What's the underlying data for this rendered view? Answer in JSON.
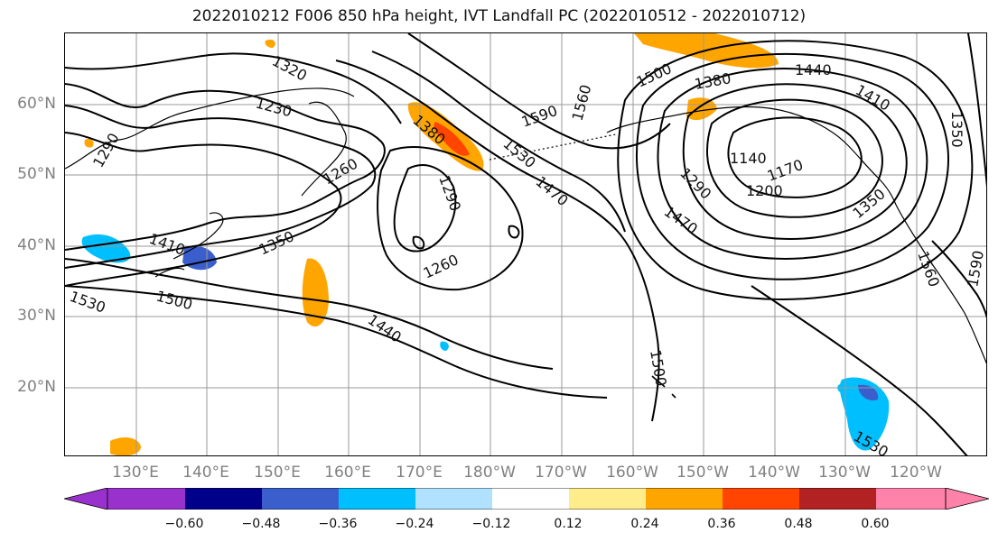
{
  "title": "2022010212 F006 850 hPa height, IVT Landfall PC (2022010512 - 2022010712)",
  "map": {
    "lat_labels": [
      "60°N",
      "50°N",
      "40°N",
      "30°N",
      "20°N"
    ],
    "lon_labels": [
      "130°E",
      "140°E",
      "150°E",
      "160°E",
      "170°E",
      "180°W",
      "170°W",
      "160°W",
      "150°W",
      "140°W",
      "130°W",
      "120°W"
    ],
    "contour_labels": [
      "1320",
      "1230",
      "1290",
      "1260",
      "1410",
      "1350",
      "1530",
      "1500",
      "1440",
      "1380",
      "1290",
      "1260",
      "1530",
      "1470",
      "1590",
      "1560",
      "1500",
      "1380",
      "1440",
      "1410",
      "1140",
      "1170",
      "1200",
      "1290",
      "1470",
      "1350",
      "1350",
      "1560",
      "1590",
      "1500",
      "1530"
    ]
  },
  "colorbar": {
    "tick_labels": [
      "−0.60",
      "−0.48",
      "−0.36",
      "−0.24",
      "−0.12",
      "0.12",
      "0.24",
      "0.36",
      "0.48",
      "0.60"
    ],
    "colors": [
      "#9932cc",
      "#00008b",
      "#3a5fcd",
      "#00bfff",
      "#b0e2ff",
      "#ffffff",
      "#ffec8b",
      "#ffa500",
      "#ff4500",
      "#b22222",
      "#ff82ab"
    ]
  }
}
